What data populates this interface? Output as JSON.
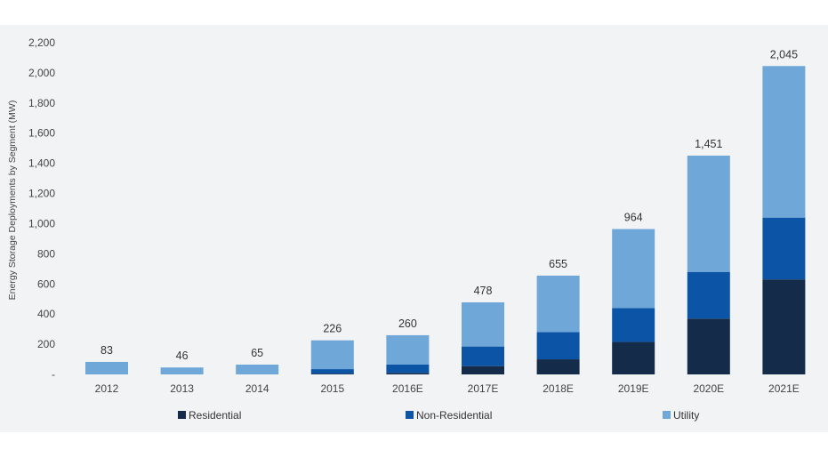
{
  "chart_data": {
    "type": "bar",
    "stacked": true,
    "ylabel": "Energy Storage Deployments by Segment (MW)",
    "ylim": [
      0,
      2200
    ],
    "yticks": [
      0,
      200,
      400,
      600,
      800,
      1000,
      1200,
      1400,
      1600,
      1800,
      2000,
      2200
    ],
    "ytick_labels": [
      "-",
      "200",
      "400",
      "600",
      "800",
      "1,000",
      "1,200",
      "1,400",
      "1,600",
      "1,800",
      "2,000",
      "2,200"
    ],
    "categories": [
      "2012",
      "2013",
      "2014",
      "2015",
      "2016E",
      "2017E",
      "2018E",
      "2019E",
      "2020E",
      "2021E"
    ],
    "totals_labels": [
      "83",
      "46",
      "65",
      "226",
      "260",
      "478",
      "655",
      "964",
      "1,451",
      "2,045"
    ],
    "series": [
      {
        "name": "Residential",
        "color": "#152b4a",
        "values": [
          0,
          0,
          0,
          5,
          10,
          55,
          100,
          215,
          370,
          630
        ]
      },
      {
        "name": "Non-Residential",
        "color": "#0c55a6",
        "values": [
          0,
          0,
          0,
          30,
          55,
          130,
          180,
          225,
          310,
          410
        ]
      },
      {
        "name": "Utility",
        "color": "#6ea7d8",
        "values": [
          83,
          46,
          65,
          191,
          195,
          293,
          375,
          524,
          771,
          1005
        ]
      }
    ],
    "grid": false,
    "legend_position": "bottom"
  }
}
